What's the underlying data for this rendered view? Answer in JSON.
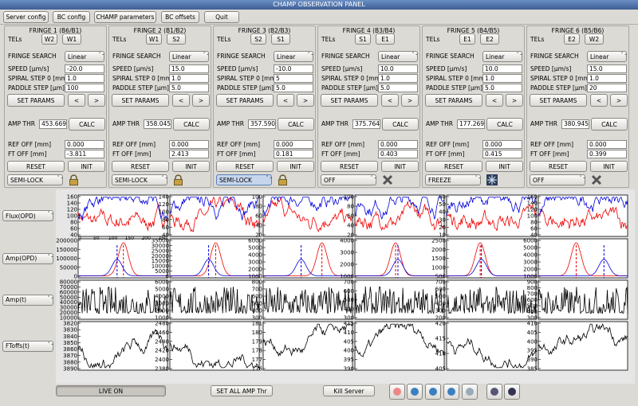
{
  "window": {
    "title": "CHAMP OBSERVATION PANEL"
  },
  "toolbar": [
    "Server config",
    "BC config",
    "CHAMP parameters",
    "BC offsets",
    "Quit"
  ],
  "labels": {
    "tels": "TELs",
    "fringe_search": "FRINGE SEARCH",
    "speed": "SPEED [μm/s]",
    "spiral": "SPIRAL STEP 0 [mm]",
    "paddle": "PADDLE STEP [μm]",
    "set_params": "SET PARAMS",
    "prev": "<",
    "next": ">",
    "amp_thr": "AMP THR",
    "calc": "CALC",
    "ref_off": "REF OFF [mm]",
    "ft_off": "FT OFF [mm]",
    "reset": "RESET",
    "init": "INIT"
  },
  "fringes": [
    {
      "title": "FRINGE 1 (B6/B1)",
      "tels": [
        "W2",
        "W1"
      ],
      "search": "Linear",
      "speed": "-20.0",
      "spiral": "1.0",
      "paddle": "100",
      "amp_thr": "453.669",
      "ref_off": "0.000",
      "ft_off": "-3.811",
      "mode": "SEMI-LOCK",
      "icon": "lock"
    },
    {
      "title": "FRINGE 2 (B1/B2)",
      "tels": [
        "W1",
        "S2"
      ],
      "search": "Linear",
      "speed": "15.0",
      "spiral": "1.0",
      "paddle": "5.0",
      "amp_thr": "358.045",
      "ref_off": "0.000",
      "ft_off": "2.413",
      "mode": "SEMI-LOCK",
      "icon": "lock"
    },
    {
      "title": "FRINGE 3 (B2/B3)",
      "tels": [
        "S2",
        "S1"
      ],
      "search": "Linear",
      "speed": "-10.0",
      "spiral": "5",
      "paddle": "5.0",
      "amp_thr": "357.590",
      "ref_off": "0.000",
      "ft_off": "0.181",
      "mode": "SEMI-LOCK",
      "icon": "lock",
      "focused": true
    },
    {
      "title": "FRINGE 4 (B3/B4)",
      "tels": [
        "S1",
        "E1"
      ],
      "search": "Linear",
      "speed": "10.0",
      "spiral": "1.0",
      "paddle": "5.0",
      "amp_thr": "375.764",
      "ref_off": "0.000",
      "ft_off": "0.403",
      "mode": "OFF",
      "icon": "cross"
    },
    {
      "title": "FRINGE 5 (B4/B5)",
      "tels": [
        "E1",
        "E2"
      ],
      "search": "Linear",
      "speed": "10.0",
      "spiral": "1.0",
      "paddle": "5.0",
      "amp_thr": "177.269",
      "ref_off": "0.000",
      "ft_off": "0.415",
      "mode": "FREEZE",
      "icon": "snowflake"
    },
    {
      "title": "FRINGE 6 (B5/B6)",
      "tels": [
        "E2",
        "W2"
      ],
      "search": "Linear",
      "speed": "15.0",
      "spiral": "1.0",
      "paddle": "20",
      "amp_thr": "380.945",
      "ref_off": "0.000",
      "ft_off": "0.399",
      "mode": "OFF",
      "icon": "cross"
    }
  ],
  "plot_buttons": [
    "Flux(OPD)",
    "Amp(OPD)",
    "Amp(t)",
    "FToffs(t)"
  ],
  "plot_yticks": [
    [
      [
        160,
        140,
        120,
        100,
        80,
        60,
        40
      ],
      [
        140,
        120,
        100,
        80,
        60,
        40
      ],
      [
        100,
        80,
        60,
        40,
        20
      ],
      [
        100,
        80,
        60,
        40,
        20
      ],
      [
        60,
        50,
        40,
        30,
        20,
        10
      ],
      [
        160,
        140,
        120,
        100,
        80,
        60,
        40
      ]
    ],
    [
      [
        200000,
        150000,
        100000,
        50000,
        0
      ],
      [
        35000,
        30000,
        25000,
        20000,
        15000,
        10000,
        5000,
        0
      ],
      [
        6000,
        5000,
        4000,
        3000,
        2000,
        1000
      ],
      [
        4000,
        3000,
        2000,
        1000
      ],
      [
        2500,
        2000,
        1500,
        1000,
        500
      ],
      [
        6000,
        5000,
        4000,
        3000,
        2000,
        1000
      ]
    ],
    [
      [
        80000,
        70000,
        60000,
        50000,
        40000,
        30000,
        20000,
        10000
      ],
      [
        6000,
        5000,
        4000,
        3000,
        2000,
        1000
      ],
      [
        800,
        700,
        600,
        500,
        400,
        300
      ],
      [
        700,
        600,
        500,
        400,
        300
      ],
      [
        700,
        600,
        500,
        400,
        300,
        200
      ],
      [
        900,
        800,
        700,
        600,
        500,
        400,
        300
      ]
    ],
    [
      [
        3820,
        3830,
        3840,
        3850,
        3860,
        3870,
        3880,
        3890
      ],
      [
        2480,
        2460,
        2440,
        2420,
        2400,
        2380
      ],
      [
        181,
        180,
        179,
        178,
        177,
        176
      ],
      [
        415,
        410,
        405,
        400,
        395,
        390
      ],
      [
        420,
        415,
        410,
        405
      ],
      [
        410,
        405,
        400,
        395,
        390,
        385
      ]
    ]
  ],
  "flux_xticks": [
    0,
    50,
    100,
    150,
    200,
    250
  ],
  "bottom": {
    "live": "LIVE ON",
    "set_all": "SET ALL AMP Thr",
    "kill": "Kill Server"
  }
}
